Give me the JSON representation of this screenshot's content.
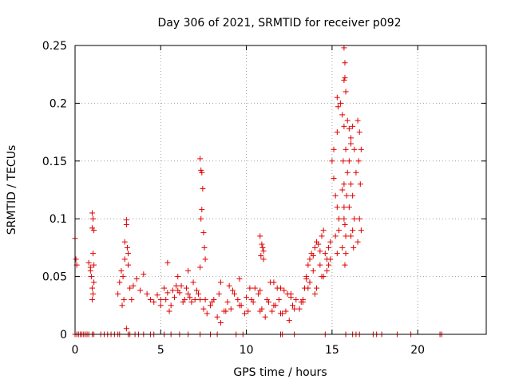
{
  "chart_data": {
    "type": "scatter",
    "title": "Day 306 of 2021, SRMTID for receiver p092",
    "xlabel": "GPS time / hours",
    "ylabel": "SRMTID / TECUs",
    "xlim": [
      0,
      24
    ],
    "ylim": [
      0,
      0.25
    ],
    "xticks": [
      0,
      5,
      10,
      15,
      20
    ],
    "yticks": [
      0,
      0.05,
      0.1,
      0.15,
      0.2,
      0.25
    ],
    "ytick_labels": [
      "0",
      "0.05",
      "0.1",
      "0.15",
      "0.2",
      "0.25"
    ],
    "grid": true,
    "marker": "+",
    "color": "#e00000",
    "series": [
      {
        "name": "SRMTID",
        "x": [
          0.0,
          0.1,
          0.2,
          0.3,
          0.4,
          0.5,
          0.6,
          0.7,
          0.8,
          1.0,
          1.1,
          1.5,
          1.7,
          1.9,
          2.1,
          2.3,
          2.5,
          2.6,
          3.1,
          3.2,
          3.5,
          3.7,
          4.0,
          4.4,
          4.6,
          5.2,
          5.6,
          6.1,
          6.6,
          7.3,
          7.9,
          8.3,
          9.4,
          9.8,
          12.0,
          12.1,
          12.8,
          14.6,
          15.8,
          16.2,
          16.4,
          16.6,
          17.4,
          17.6,
          17.9,
          18.8,
          19.6,
          21.3,
          21.4,
          0.0,
          0.05,
          0.1,
          0.8,
          0.9,
          0.95,
          1.0,
          1.0,
          1.05,
          1.1,
          1.1,
          1.0,
          1.05,
          0.9,
          1.0,
          1.1,
          1.05,
          2.5,
          2.6,
          2.7,
          2.8,
          2.9,
          3.0,
          3.0,
          2.9,
          3.05,
          3.1,
          3.1,
          3.2,
          3.3,
          2.75,
          2.85,
          3.0,
          3.4,
          3.6,
          3.8,
          4.0,
          4.2,
          4.4,
          4.6,
          4.8,
          5.0,
          5.2,
          5.4,
          5.6,
          5.8,
          6.0,
          6.2,
          6.4,
          6.6,
          6.8,
          7.0,
          7.2,
          5.0,
          5.3,
          5.5,
          5.7,
          5.9,
          6.1,
          6.3,
          6.5,
          6.7,
          6.9,
          7.1,
          7.3,
          5.4,
          6.0,
          6.6,
          7.3,
          7.35,
          7.4,
          7.45,
          7.4,
          7.35,
          7.5,
          7.55,
          7.6,
          7.3,
          7.5,
          7.7,
          7.9,
          8.1,
          8.3,
          8.5,
          8.7,
          8.9,
          9.1,
          9.3,
          9.5,
          9.7,
          9.9,
          10.1,
          10.3,
          10.5,
          10.7,
          10.9,
          11.1,
          11.3,
          11.5,
          11.7,
          11.9,
          12.1,
          12.3,
          12.5,
          12.7,
          12.9,
          13.1,
          13.3,
          7.6,
          8.0,
          8.4,
          8.8,
          9.2,
          9.6,
          10.0,
          10.4,
          10.8,
          11.2,
          11.6,
          12.0,
          12.4,
          12.8,
          13.2,
          8.5,
          9.0,
          9.6,
          10.2,
          10.8,
          11.4,
          12.0,
          12.6,
          10.8,
          10.9,
          11.0,
          10.85,
          10.95,
          11.0,
          11.6,
          11.8,
          12.2,
          12.6,
          13.3,
          13.4,
          13.5,
          13.6,
          13.7,
          13.8,
          13.9,
          14.0,
          14.1,
          14.2,
          14.3,
          14.4,
          14.5,
          14.6,
          14.7,
          14.8,
          14.9,
          13.5,
          13.7,
          13.9,
          14.1,
          14.3,
          14.5,
          14.7,
          14.9,
          13.6,
          14.0,
          14.4,
          14.8,
          15.0,
          15.1,
          15.2,
          15.3,
          15.4,
          15.2,
          15.3,
          15.1,
          15.4,
          15.3,
          15.5,
          15.6,
          15.7,
          15.8,
          15.9,
          15.6,
          15.7,
          15.75,
          15.8,
          15.7,
          15.65,
          15.85,
          15.6,
          15.7,
          15.8,
          15.75,
          16.0,
          16.1,
          16.2,
          16.3,
          16.4,
          16.1,
          16.2,
          16.0,
          16.3,
          16.2,
          16.1,
          16.25,
          16.5,
          16.6,
          16.7,
          16.55,
          16.65,
          16.6,
          16.7,
          16.5,
          15.7,
          15.75,
          15.7,
          15.75,
          15.8,
          15.3,
          15.35,
          16.0,
          16.1,
          15.9
        ],
        "y": [
          0,
          0,
          0,
          0,
          0,
          0,
          0,
          0,
          0,
          0,
          0,
          0,
          0,
          0,
          0,
          0,
          0,
          0,
          0,
          0,
          0,
          0,
          0,
          0,
          0,
          0,
          0,
          0,
          0,
          0,
          0,
          0,
          0,
          0,
          0,
          0,
          0,
          0,
          0,
          0,
          0,
          0,
          0,
          0,
          0,
          0,
          0,
          0,
          0,
          0.083,
          0.065,
          0.06,
          0.062,
          0.058,
          0.05,
          0.092,
          0.105,
          0.1,
          0.09,
          0.045,
          0.04,
          0.035,
          0.055,
          0.03,
          0.06,
          0.07,
          0.035,
          0.045,
          0.055,
          0.05,
          0.065,
          0.095,
          0.099,
          0.08,
          0.075,
          0.07,
          0.06,
          0.04,
          0.03,
          0.025,
          0.03,
          0.005,
          0.042,
          0.048,
          0.038,
          0.052,
          0.035,
          0.03,
          0.028,
          0.034,
          0.03,
          0.04,
          0.036,
          0.025,
          0.032,
          0.038,
          0.042,
          0.03,
          0.035,
          0.028,
          0.03,
          0.035,
          0.025,
          0.03,
          0.02,
          0.038,
          0.042,
          0.036,
          0.028,
          0.04,
          0.032,
          0.045,
          0.038,
          0.03,
          0.062,
          0.05,
          0.055,
          0.152,
          0.142,
          0.14,
          0.126,
          0.108,
          0.1,
          0.088,
          0.075,
          0.065,
          0.058,
          0.022,
          0.018,
          0.025,
          0.03,
          0.015,
          0.01,
          0.02,
          0.028,
          0.022,
          0.035,
          0.03,
          0.025,
          0.018,
          0.02,
          0.03,
          0.04,
          0.035,
          0.022,
          0.015,
          0.028,
          0.02,
          0.025,
          0.03,
          0.018,
          0.02,
          0.012,
          0.025,
          0.03,
          0.022,
          0.028,
          0.03,
          0.028,
          0.035,
          0.02,
          0.038,
          0.025,
          0.032,
          0.028,
          0.02,
          0.03,
          0.025,
          0.018,
          0.035,
          0.022,
          0.028,
          0.045,
          0.042,
          0.048,
          0.04,
          0.038,
          0.045,
          0.04,
          0.035,
          0.085,
          0.078,
          0.072,
          0.068,
          0.075,
          0.065,
          0.045,
          0.04,
          0.038,
          0.032,
          0.03,
          0.04,
          0.048,
          0.06,
          0.065,
          0.07,
          0.068,
          0.075,
          0.08,
          0.078,
          0.072,
          0.085,
          0.09,
          0.07,
          0.065,
          0.075,
          0.08,
          0.05,
          0.045,
          0.055,
          0.04,
          0.06,
          0.05,
          0.055,
          0.065,
          0.04,
          0.035,
          0.05,
          0.06,
          0.15,
          0.135,
          0.12,
          0.11,
          0.1,
          0.085,
          0.07,
          0.16,
          0.09,
          0.175,
          0.2,
          0.19,
          0.18,
          0.16,
          0.14,
          0.125,
          0.11,
          0.095,
          0.085,
          0.13,
          0.15,
          0.12,
          0.075,
          0.1,
          0.07,
          0.06,
          0.15,
          0.17,
          0.18,
          0.16,
          0.14,
          0.13,
          0.12,
          0.11,
          0.1,
          0.09,
          0.085,
          0.075,
          0.185,
          0.175,
          0.16,
          0.15,
          0.13,
          0.1,
          0.09,
          0.08,
          0.248,
          0.235,
          0.22,
          0.222,
          0.21,
          0.205,
          0.197,
          0.178,
          0.165,
          0.185
        ]
      }
    ]
  }
}
